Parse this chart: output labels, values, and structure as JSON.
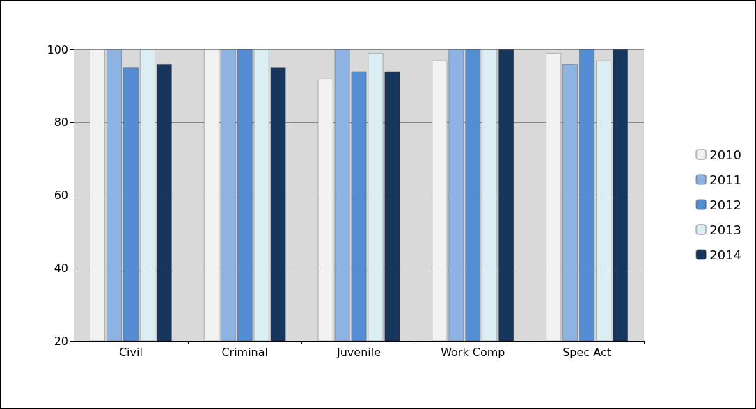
{
  "chart_data": {
    "type": "bar",
    "categories": [
      "Civil",
      "Criminal",
      "Juvenile",
      "Work Comp",
      "Spec Act"
    ],
    "series": [
      {
        "name": "2010",
        "color": "#f2f2f2",
        "values": [
          100,
          100,
          92,
          97,
          99
        ]
      },
      {
        "name": "2011",
        "color": "#8db3e2",
        "values": [
          100,
          100,
          100,
          100,
          96
        ]
      },
      {
        "name": "2012",
        "color": "#548dd4",
        "values": [
          95,
          100,
          94,
          100,
          100
        ]
      },
      {
        "name": "2013",
        "color": "#dbeef3",
        "values": [
          100,
          100,
          99,
          100,
          97
        ]
      },
      {
        "name": "2014",
        "color": "#17365d",
        "values": [
          96,
          95,
          94,
          100,
          100
        ]
      }
    ],
    "ylim": [
      20,
      100
    ],
    "yticks": [
      20,
      40,
      60,
      80,
      100
    ],
    "grid": "y",
    "legend": "right"
  }
}
